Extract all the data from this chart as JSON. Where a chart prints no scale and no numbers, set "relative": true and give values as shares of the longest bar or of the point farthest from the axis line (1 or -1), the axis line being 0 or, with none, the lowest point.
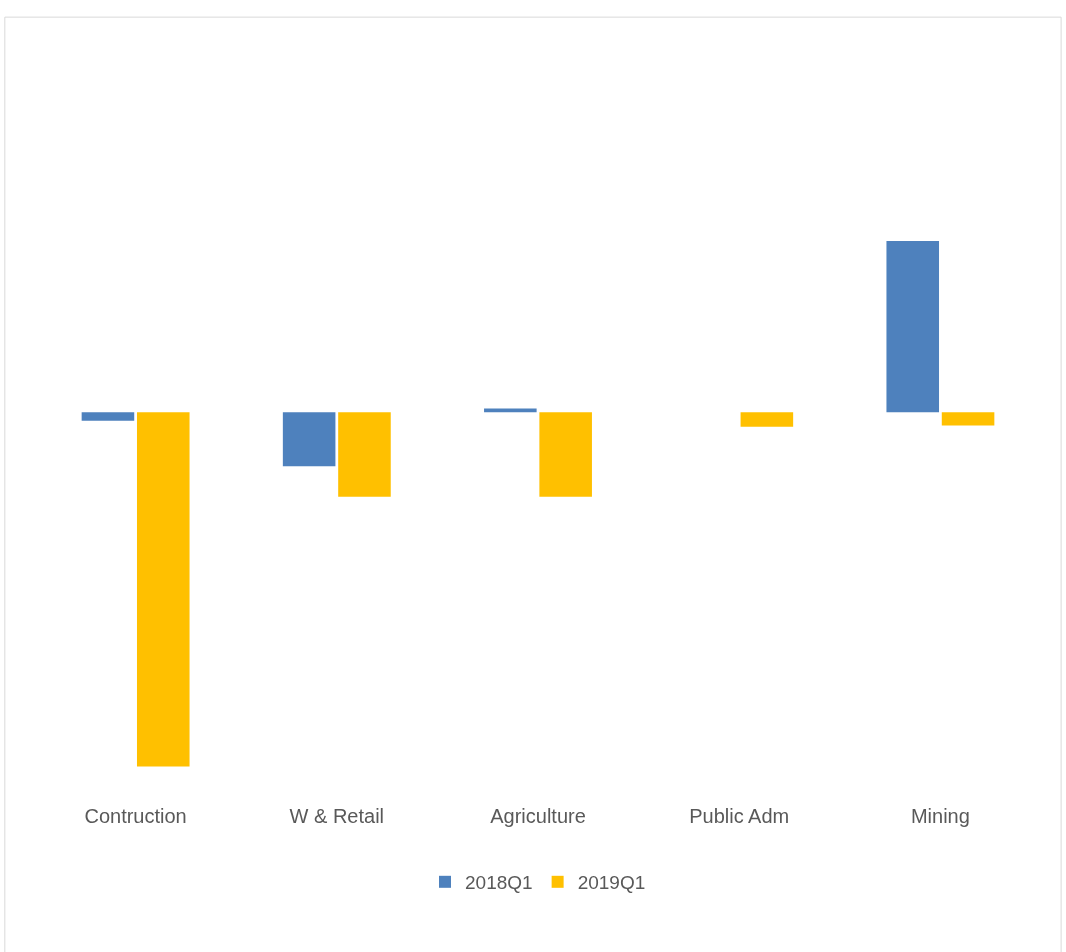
{
  "chart_data": {
    "type": "bar",
    "relative": true,
    "categories": [
      "Contruction",
      "W & Retail",
      "Agriculture",
      "Public Adm",
      "Mining"
    ],
    "series": [
      {
        "name": "2018Q1",
        "color": "#4e81bd",
        "values": [
          -0.024,
          -0.153,
          0.01,
          0,
          0.483
        ]
      },
      {
        "name": "2019Q1",
        "color": "#ffc000",
        "values": [
          -1,
          -0.239,
          -0.239,
          -0.041,
          -0.038
        ]
      }
    ],
    "legend": "bottom"
  }
}
